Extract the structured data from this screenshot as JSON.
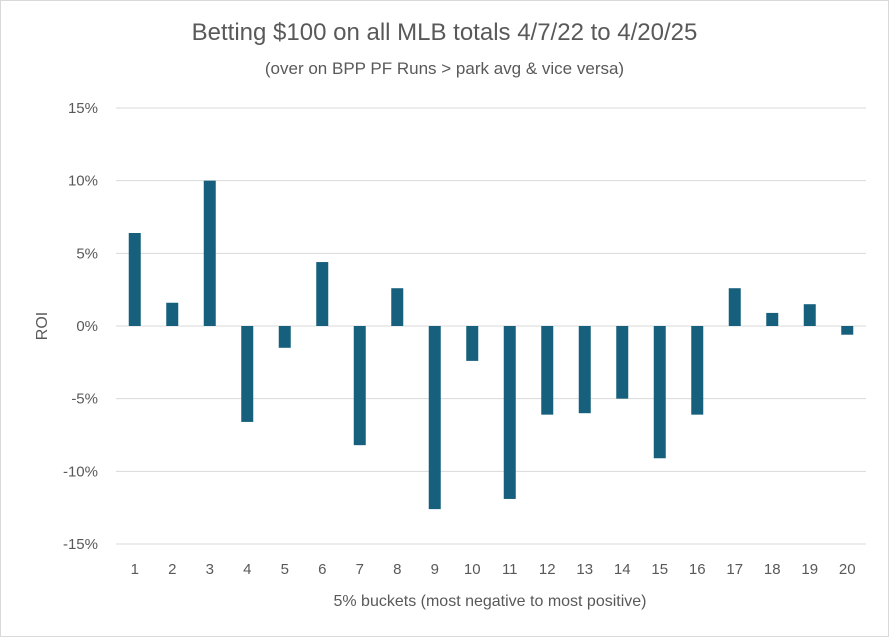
{
  "chart_data": {
    "type": "bar",
    "title": "Betting $100 on all MLB totals 4/7/22 to 4/20/25",
    "subtitle": "(over on BPP PF Runs > park avg & vice versa)",
    "xlabel": "5% buckets (most negative to most positive)",
    "ylabel": "ROI",
    "categories": [
      "1",
      "2",
      "3",
      "4",
      "5",
      "6",
      "7",
      "8",
      "9",
      "10",
      "11",
      "12",
      "13",
      "14",
      "15",
      "16",
      "17",
      "18",
      "19",
      "20"
    ],
    "values": [
      6.4,
      1.6,
      10.0,
      -6.6,
      -1.5,
      4.4,
      -8.2,
      2.6,
      -12.6,
      -2.4,
      -11.9,
      -6.1,
      -6.0,
      -5.0,
      -9.1,
      -6.1,
      2.6,
      0.9,
      1.5,
      -0.6
    ],
    "ylim": [
      -15,
      15
    ],
    "yticks": [
      15,
      10,
      5,
      0,
      -5,
      -10,
      -15
    ],
    "ytick_labels": [
      "15%",
      "10%",
      "5%",
      "0%",
      "-5%",
      "-10%",
      "-15%"
    ],
    "grid": true,
    "legend": "none",
    "bar_color": "#17607d",
    "grid_color": "#d9d9d9"
  }
}
